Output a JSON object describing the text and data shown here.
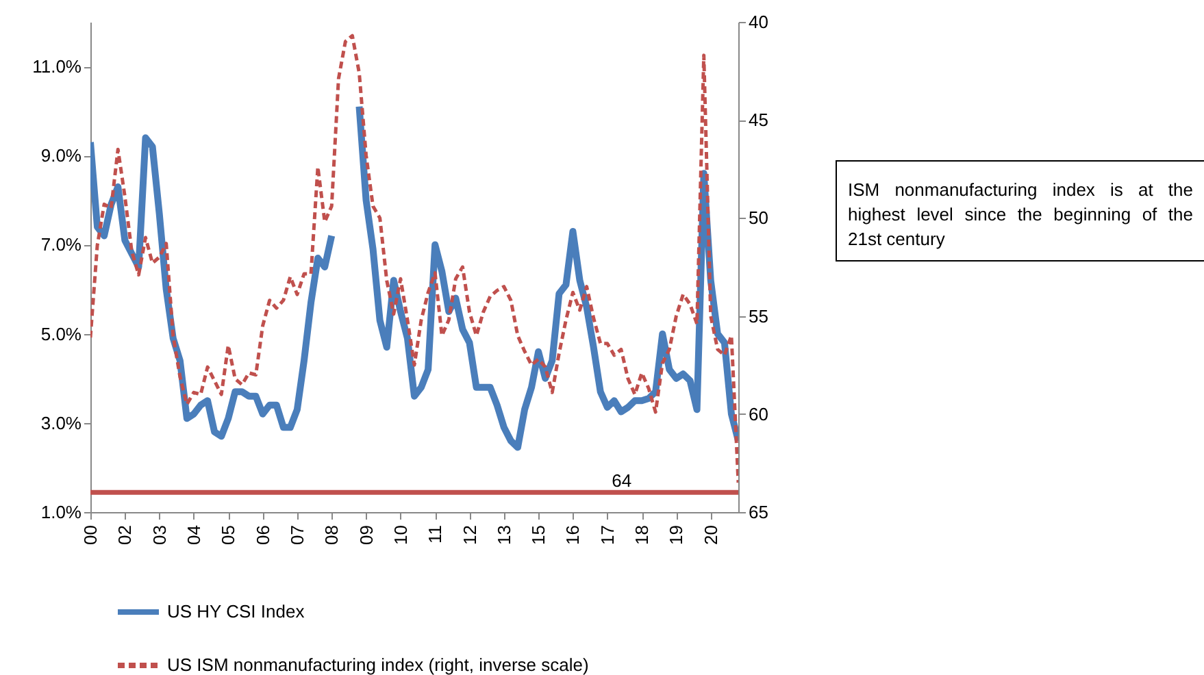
{
  "chart_data": {
    "type": "line",
    "categories": [
      "00",
      null,
      null,
      null,
      null,
      "02",
      null,
      null,
      null,
      null,
      "03",
      null,
      null,
      null,
      null,
      "04",
      null,
      null,
      null,
      null,
      "05",
      null,
      null,
      null,
      null,
      "06",
      null,
      null,
      null,
      null,
      "07",
      null,
      null,
      null,
      null,
      "08",
      null,
      null,
      null,
      null,
      "09",
      null,
      null,
      null,
      null,
      "10",
      null,
      null,
      null,
      null,
      "11",
      null,
      null,
      null,
      null,
      "12",
      null,
      null,
      null,
      null,
      "13",
      null,
      null,
      null,
      null,
      "15",
      null,
      null,
      null,
      null,
      "16",
      null,
      null,
      null,
      null,
      "17",
      null,
      null,
      null,
      null,
      "18",
      null,
      null,
      null,
      null,
      "19",
      null,
      null,
      null,
      null,
      "20",
      null,
      null,
      null,
      null
    ],
    "ylim": [
      1,
      12
    ],
    "yticks": [
      {
        "value": 1,
        "label": "1.0%"
      },
      {
        "value": 3,
        "label": "3.0%"
      },
      {
        "value": 5,
        "label": "5.0%"
      },
      {
        "value": 7,
        "label": "7.0%"
      },
      {
        "value": 9,
        "label": "9.0%"
      },
      {
        "value": 11,
        "label": "11.0%"
      }
    ],
    "y2lim": [
      65,
      40
    ],
    "y2ticks": [
      40,
      45,
      50,
      55,
      60,
      65
    ],
    "legend": "bottom",
    "series": [
      {
        "name": "US HY CSI Index",
        "color": "#4a7ebb",
        "line_style": "solid",
        "values": [
          9.3,
          7.4,
          7.2,
          7.9,
          8.3,
          7.1,
          6.8,
          6.5,
          9.4,
          9.2,
          7.7,
          6.0,
          4.9,
          4.4,
          3.1,
          3.2,
          3.4,
          3.5,
          2.8,
          2.7,
          3.1,
          3.7,
          3.7,
          3.6,
          3.6,
          3.2,
          3.4,
          3.4,
          2.9,
          2.9,
          3.3,
          4.4,
          5.7,
          6.7,
          6.5,
          7.2,
          null,
          null,
          null,
          10.1,
          8.0,
          6.9,
          5.3,
          4.7,
          6.2,
          5.5,
          4.9,
          3.6,
          3.8,
          4.2,
          7.0,
          6.4,
          5.5,
          5.8,
          5.1,
          4.8,
          3.8,
          3.8,
          3.8,
          3.4,
          2.9,
          2.6,
          2.45,
          3.3,
          3.8,
          4.6,
          4.0,
          4.4,
          5.9,
          6.1,
          7.3,
          6.2,
          5.6,
          4.7,
          3.7,
          3.35,
          3.5,
          3.25,
          3.35,
          3.5,
          3.5,
          3.55,
          3.7,
          5.0,
          4.2,
          4.0,
          4.1,
          3.95,
          3.3,
          8.6,
          6.2,
          5.0,
          4.8,
          3.2,
          2.6
        ]
      },
      {
        "name": "US ISM nonmanufacturing index (right, inverse scale)",
        "color": "#c0504d",
        "line_style": "dashed",
        "axis": "y2",
        "values": [
          56.1,
          51.4,
          49.3,
          49.5,
          46.5,
          48.9,
          51.7,
          52.9,
          51.0,
          52.3,
          52.0,
          51.3,
          56.0,
          58.1,
          59.5,
          58.9,
          59.0,
          57.6,
          58.3,
          59.0,
          56.5,
          58.2,
          58.5,
          57.9,
          58.0,
          55.5,
          54.2,
          54.6,
          54.2,
          53.0,
          53.9,
          52.85,
          52.85,
          47.4,
          50.2,
          49.4,
          42.9,
          41.0,
          40.7,
          42.6,
          46.8,
          49.4,
          50.0,
          53.2,
          54.9,
          53.1,
          55.2,
          57.5,
          55.2,
          53.8,
          52.8,
          56.0,
          55.2,
          53.1,
          52.5,
          54.8,
          56.0,
          54.8,
          54.0,
          53.7,
          53.5,
          54.2,
          56.0,
          56.8,
          57.5,
          57.2,
          57.6,
          58.9,
          56.9,
          55.2,
          53.8,
          54.7,
          53.5,
          55.1,
          56.4,
          56.4,
          57.0,
          56.7,
          58.2,
          59.0,
          57.9,
          58.7,
          59.9,
          57.4,
          56.7,
          55.0,
          53.9,
          54.4,
          55.4,
          41.7,
          55.0,
          56.7,
          57.0,
          56.0,
          63.5
        ]
      }
    ],
    "ref_lines": [
      {
        "axis": "y2",
        "value": 64,
        "label": "64",
        "color": "#c0504d"
      }
    ],
    "annotations": [
      "ISM nonmanufacturing index is at the highest level since the beginning of the 21st century"
    ]
  }
}
